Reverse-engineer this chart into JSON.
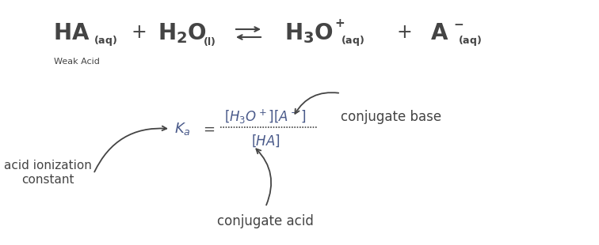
{
  "bg_color": "#ffffff",
  "text_color": "#444444",
  "fig_width": 7.56,
  "fig_height": 3.1,
  "dpi": 100,
  "equation": {
    "weak_acid_label": "Weak Acid"
  },
  "labels": {
    "conjugate_base": "conjugate base",
    "conjugate_acid": "conjugate acid",
    "acid_ionization_line1": "acid ionization",
    "acid_ionization_line2": "constant"
  }
}
